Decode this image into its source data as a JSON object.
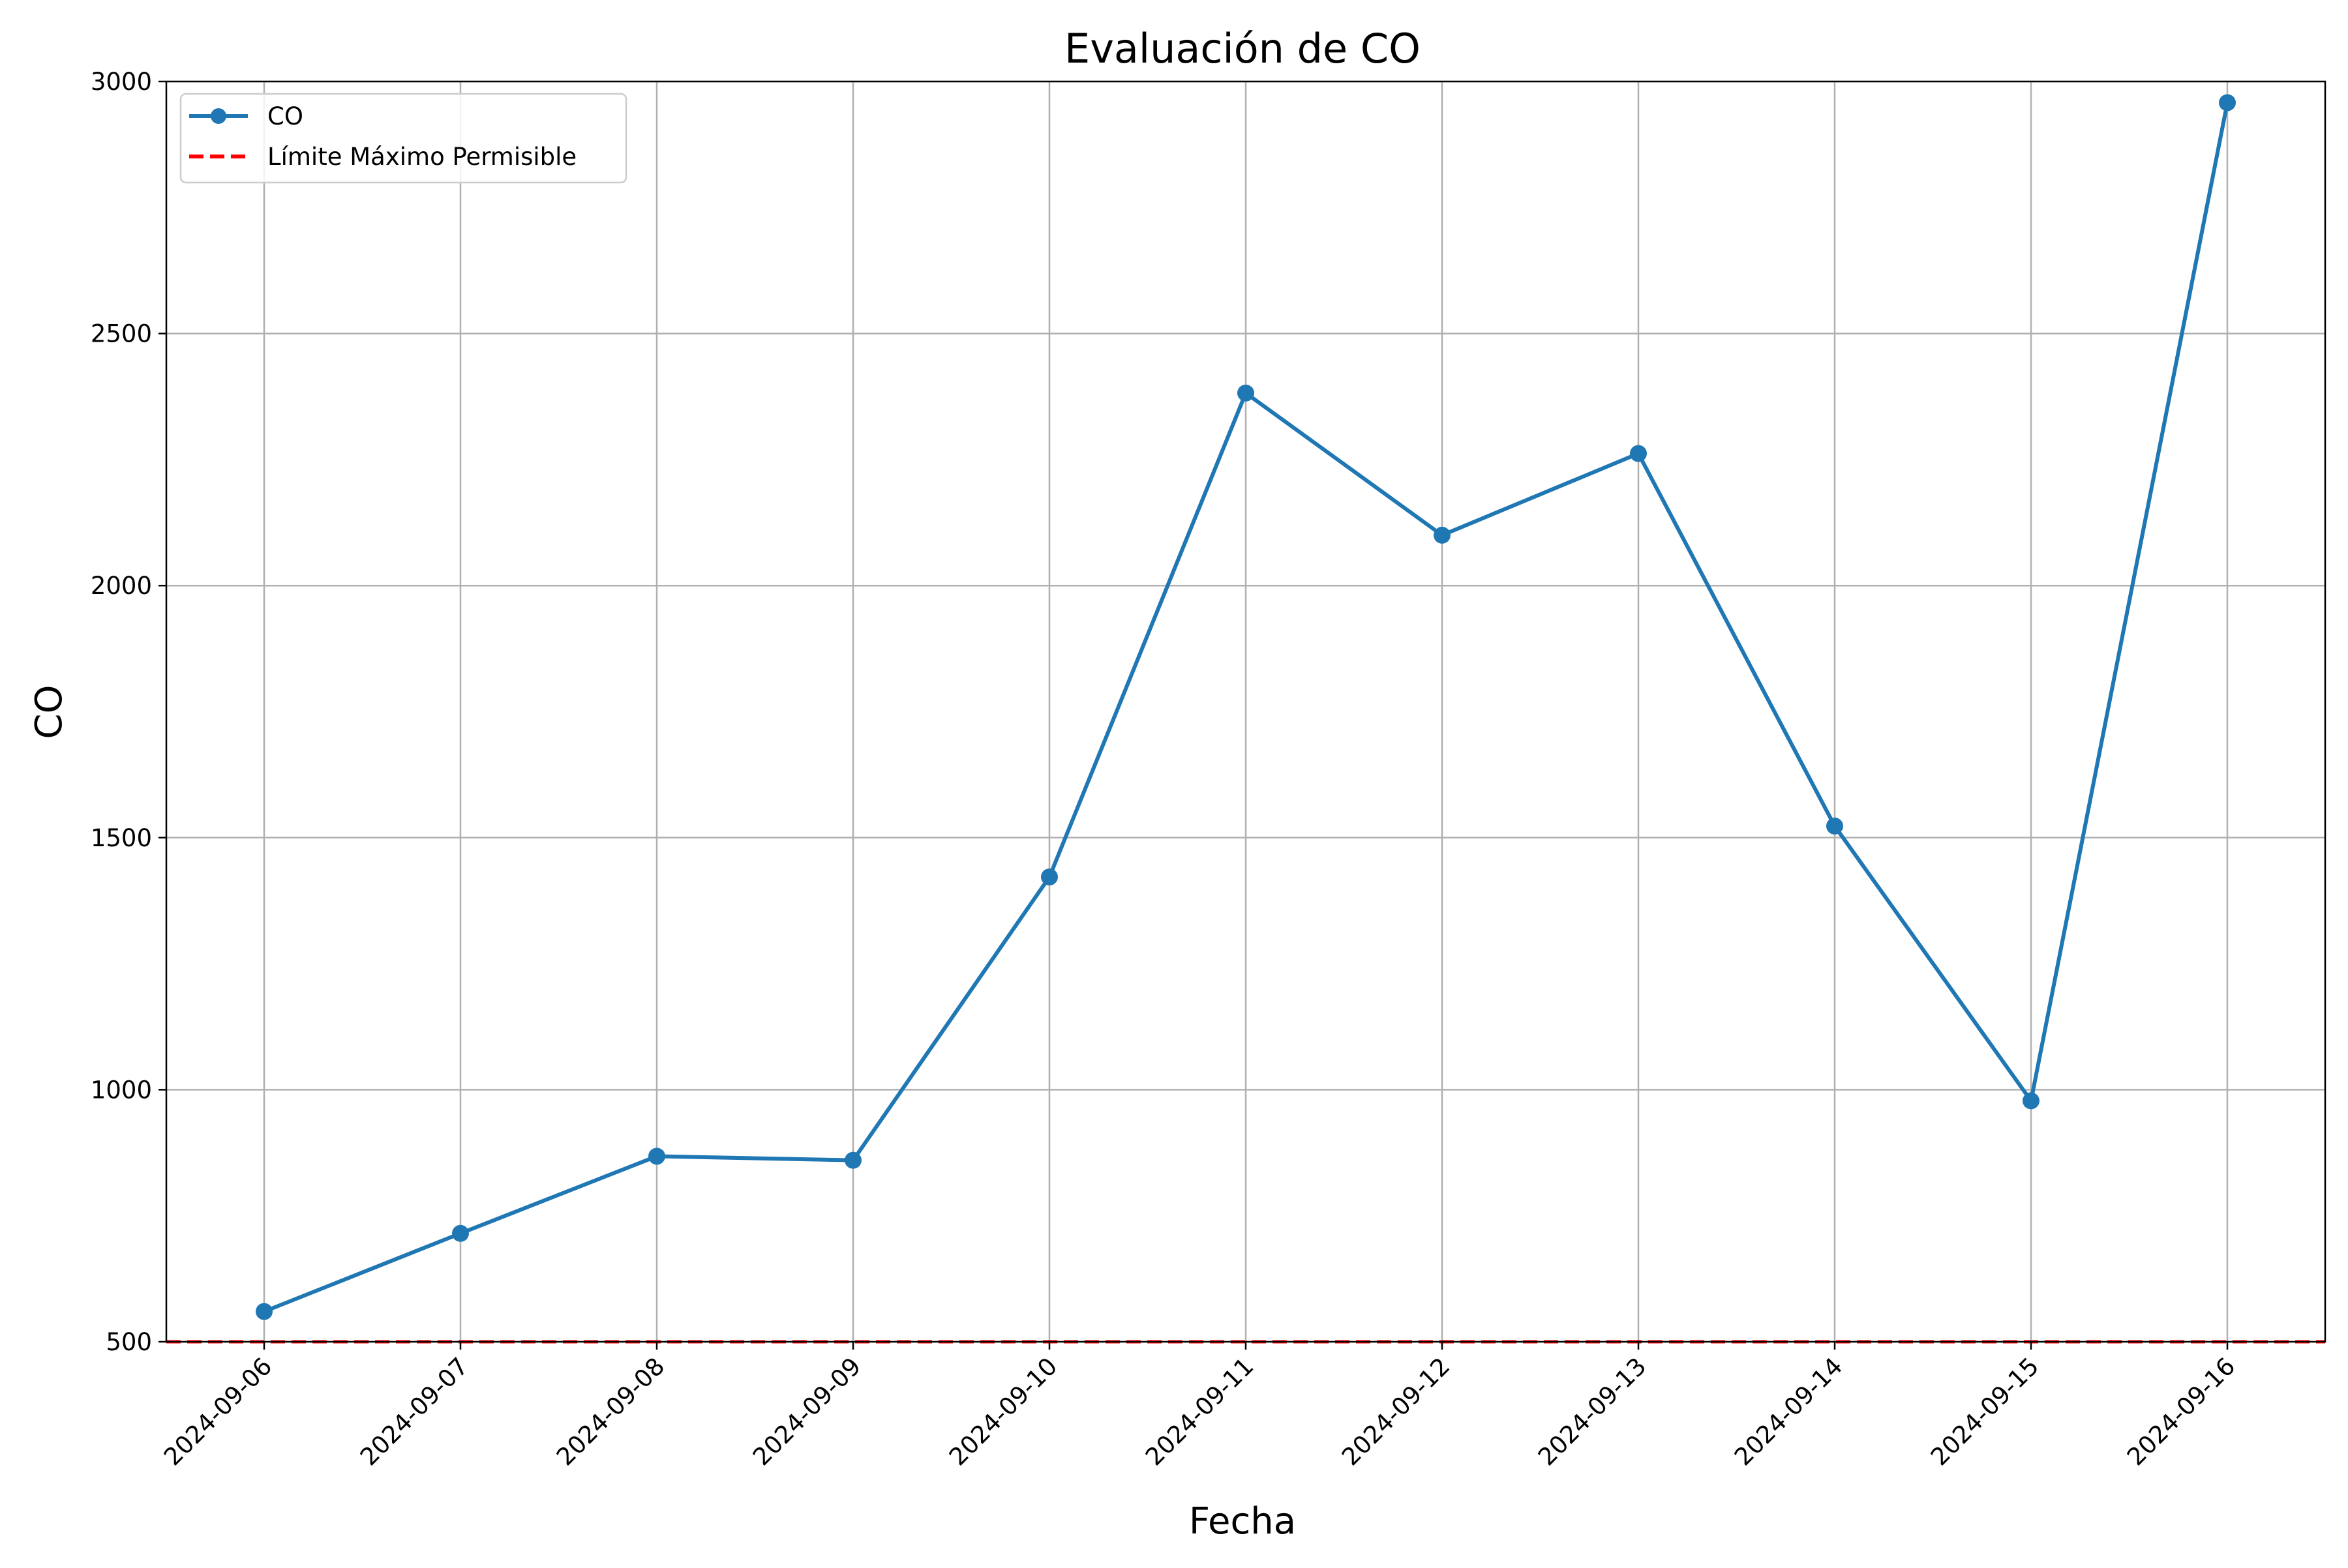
{
  "chart_data": {
    "type": "line",
    "title": "Evaluación de CO",
    "xlabel": "Fecha",
    "ylabel": "CO",
    "categories": [
      "2024-09-06",
      "2024-09-07",
      "2024-09-08",
      "2024-09-09",
      "2024-09-10",
      "2024-09-11",
      "2024-09-12",
      "2024-09-13",
      "2024-09-14",
      "2024-09-15",
      "2024-09-16"
    ],
    "series": [
      {
        "name": "CO",
        "values": [
          560,
          715,
          868,
          860,
          1422,
          2382,
          2100,
          2262,
          1523,
          978,
          2958
        ],
        "color": "#1f77b4",
        "marker": "circle",
        "line_style": "solid"
      }
    ],
    "reference_lines": [
      {
        "name": "Límite Máximo Permisible",
        "value": 500,
        "color": "#ff0000",
        "line_style": "dashed"
      }
    ],
    "ylim": [
      500,
      3000
    ],
    "yticks": [
      500,
      1000,
      1500,
      2000,
      2500,
      3000
    ],
    "grid": true,
    "legend_position": "top-left",
    "xtick_rotation": 45
  }
}
